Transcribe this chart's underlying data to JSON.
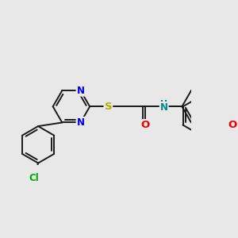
{
  "bg_color": "#e8e8e8",
  "bond_color": "#1a1a1a",
  "bond_width": 1.4,
  "dbo": 0.055,
  "atom_colors": {
    "N": "#0000ee",
    "S": "#bbaa00",
    "O": "#ee0000",
    "Cl": "#00aa00",
    "NH": "#008b8b"
  },
  "font_size": 8.5,
  "font_size_large": 9.5
}
